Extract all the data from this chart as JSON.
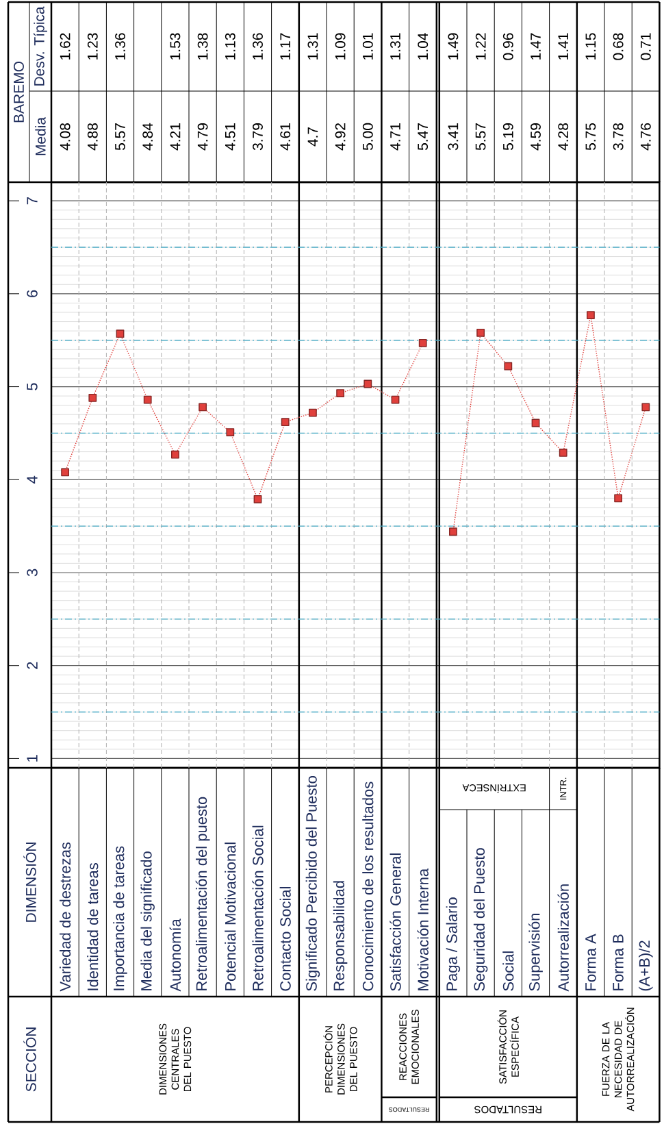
{
  "chart_data": {
    "type": "line",
    "categories": [
      "Variedad de destrezas",
      "Identidad de tareas",
      "Importancia de tareas",
      "Media del significado",
      "Autonomía",
      "Retroalimentación del puesto",
      "Potencial Motivacional",
      "Retroalimentación Social",
      "Contacto Social",
      "Significado Percibido del Puesto",
      "Responsabilidad",
      "Conocimiento de los resultados",
      "Satisfacción General",
      "Motivación Interna",
      "Paga / Salario",
      "Seguridad del Puesto",
      "Social",
      "Supervisión",
      "Autorrealización",
      "Forma A",
      "Forma B",
      "(A+B)/2"
    ],
    "series": [
      {
        "color": "#e0403c",
        "values": [
          4.08,
          4.88,
          5.57,
          4.86,
          4.27,
          4.78,
          4.51,
          3.79,
          4.62,
          4.72,
          4.93,
          5.03,
          4.86,
          5.47,
          null,
          null,
          null,
          null,
          null,
          null,
          null,
          null
        ]
      },
      {
        "color": "#e0403c",
        "values": [
          null,
          null,
          null,
          null,
          null,
          null,
          null,
          null,
          null,
          null,
          null,
          null,
          null,
          null,
          3.44,
          5.58,
          5.22,
          4.61,
          4.29,
          5.77,
          3.8,
          4.78
        ]
      }
    ],
    "ylim": [
      0.9,
      7.2
    ],
    "yticks": [
      1,
      2,
      3,
      4,
      5,
      6,
      7
    ],
    "grid": "y",
    "marker": "square",
    "line_style": "dotted",
    "ref_lines": [
      {
        "axis": "y",
        "value": 1.5,
        "color": "#4bacc6"
      },
      {
        "axis": "y",
        "value": 2.5,
        "color": "#4bacc6"
      },
      {
        "axis": "y",
        "value": 3.5,
        "color": "#4bacc6"
      },
      {
        "axis": "y",
        "value": 4.5,
        "color": "#4bacc6"
      },
      {
        "axis": "y",
        "value": 5.5,
        "color": "#4bacc6"
      },
      {
        "axis": "y",
        "value": 6.5,
        "color": "#4bacc6"
      }
    ],
    "annotations": [
      "SECCIÓN",
      "DIMENSIONES CENTRALES DEL PUESTO",
      "PERCEPCIÓN DIMENSIONES DEL PUESTO",
      "REACCIONES EMOCIONALES",
      "RESULTADOS",
      "SATISFACCIÓN ESPECÍFICA",
      "RESULTADOS",
      "FUERZA DE LA NECESIDAD DE AUTORREALIZACIÓN",
      "EXTRÍNSECA",
      "INTR.",
      "DIMENSIÓN",
      "BAREMO",
      "Media",
      "Desv. Típica",
      "4.08",
      "4.88",
      "5.57",
      "4.84",
      "4.21",
      "4.79",
      "4.51",
      "3.79",
      "4.61",
      "4.7",
      "4.92",
      "5.00",
      "4.71",
      "5.47",
      "3.41",
      "5.57",
      "5.19",
      "4.59",
      "4.28",
      "5.75",
      "3.78",
      "4.76",
      "1.62",
      "1.23",
      "1.36",
      "1.53",
      "1.38",
      "1.13",
      "1.36",
      "1.17",
      "1.31",
      "1.09",
      "1.01",
      "1.31",
      "1.04",
      "1.49",
      "1.22",
      "0.96",
      "1.47",
      "1.41",
      "1.15",
      "0.68",
      "0.71"
    ]
  }
}
